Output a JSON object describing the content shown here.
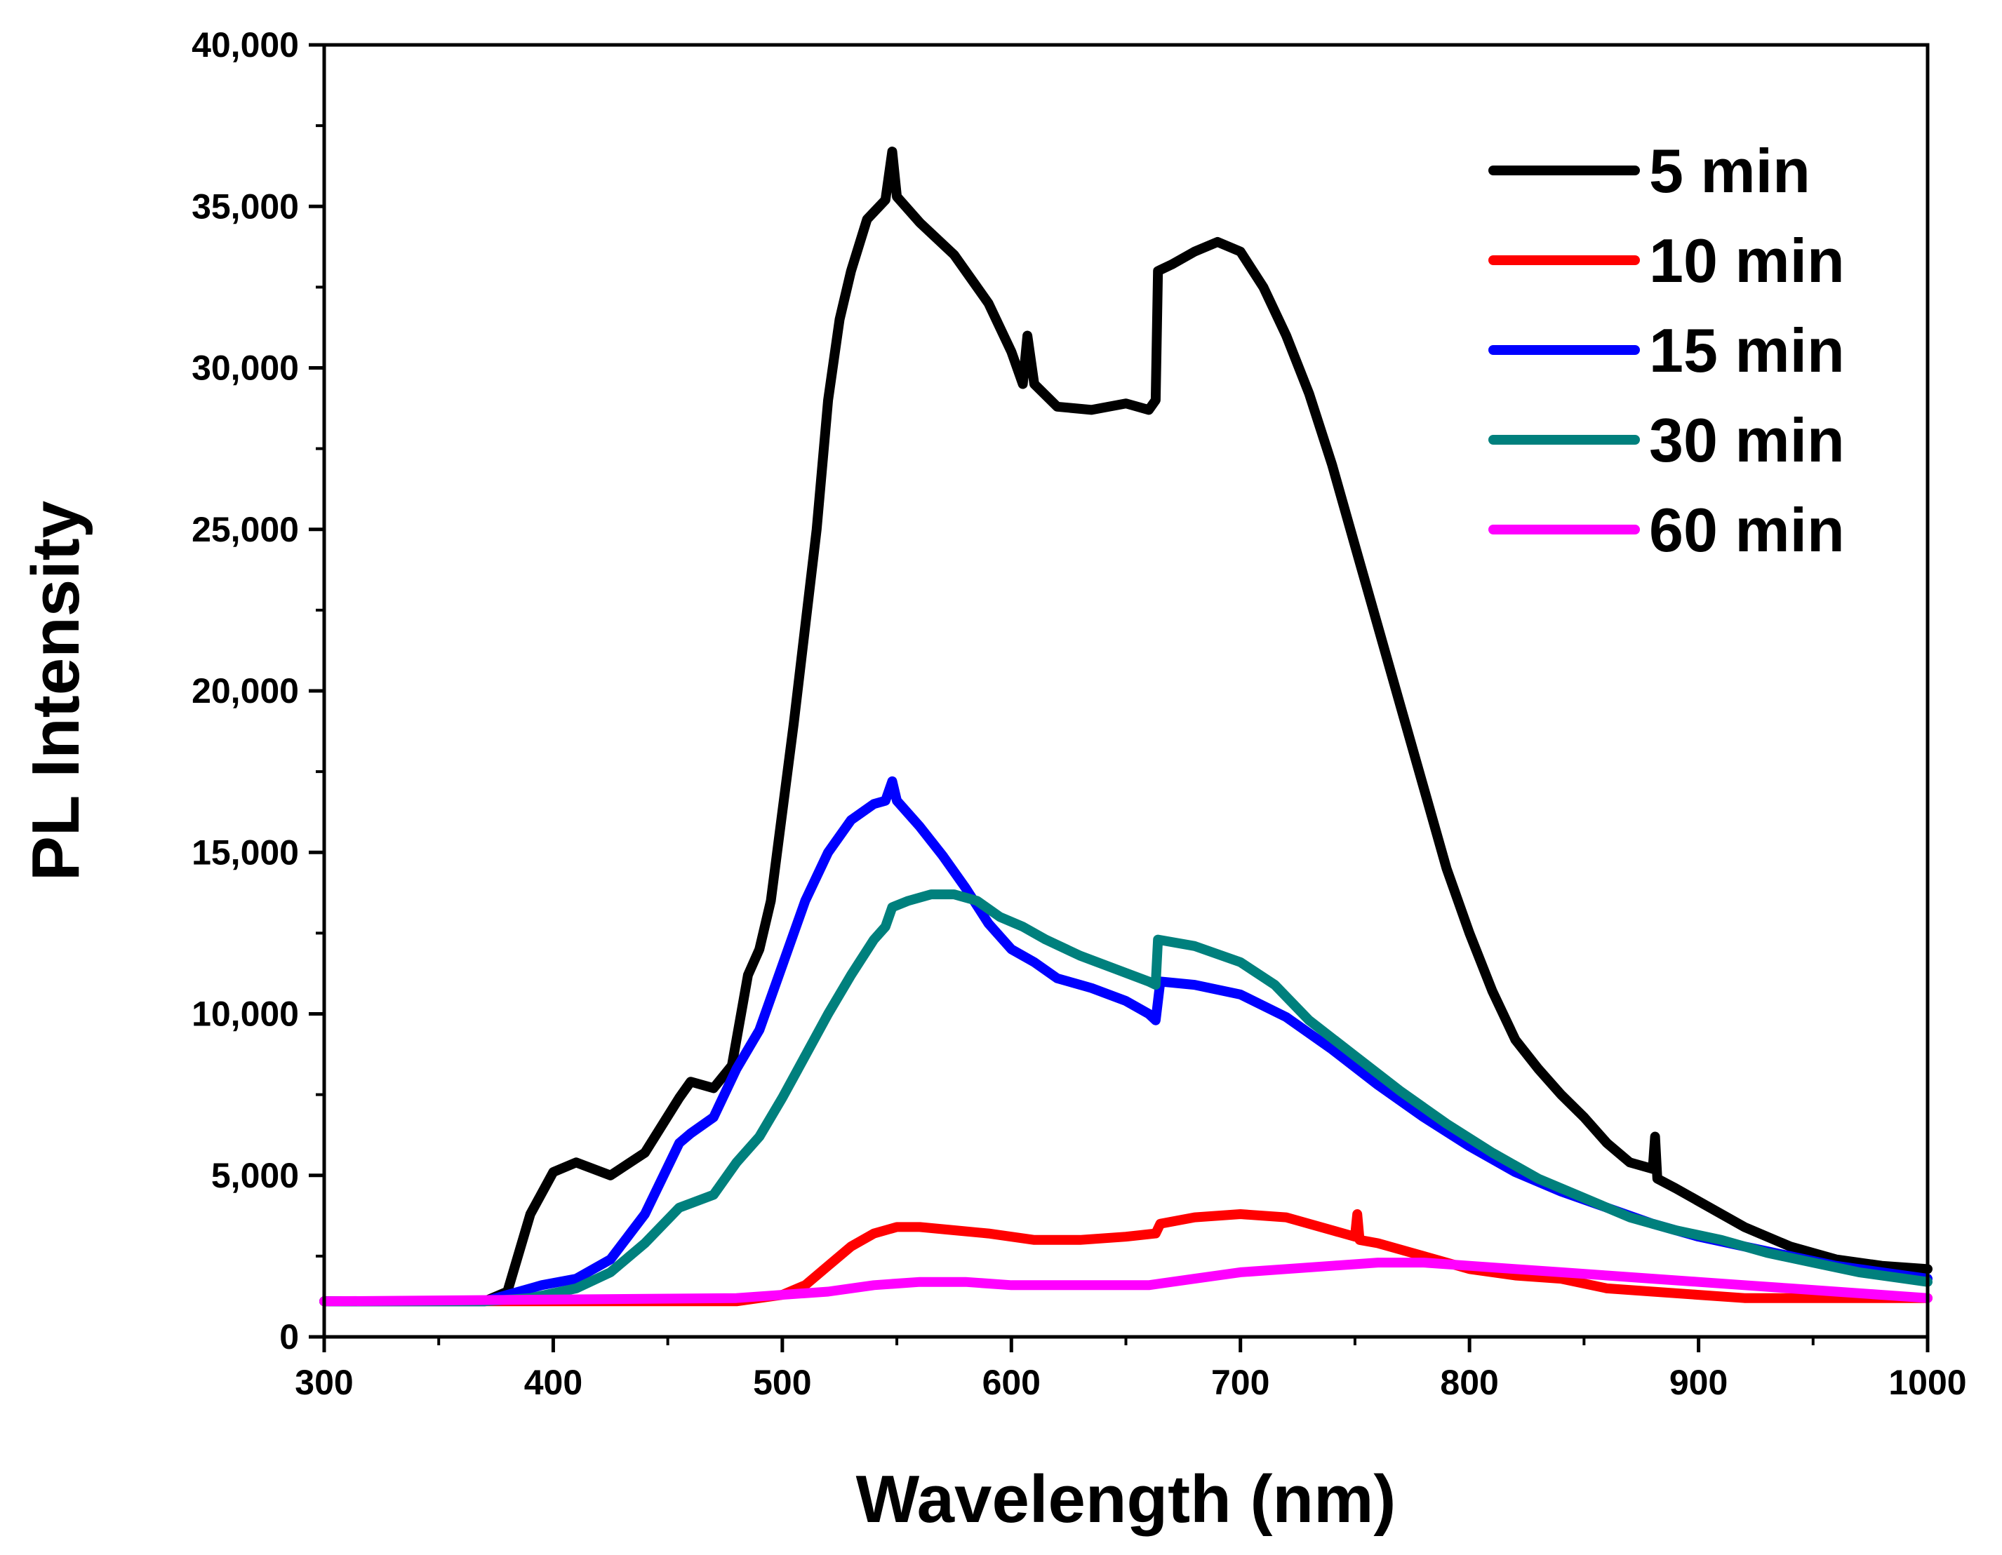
{
  "chart_data": {
    "type": "line",
    "title": "",
    "xlabel": "Wavelength (nm)",
    "ylabel": "PL Intensity",
    "xlim": [
      300,
      1000
    ],
    "ylim": [
      0,
      40000
    ],
    "x_ticks": [
      300,
      400,
      500,
      600,
      700,
      800,
      900,
      1000
    ],
    "x_tick_labels": [
      "300",
      "400",
      "500",
      "600",
      "700",
      "800",
      "900",
      "1000"
    ],
    "y_ticks": [
      0,
      5000,
      10000,
      15000,
      20000,
      25000,
      30000,
      35000,
      40000
    ],
    "y_tick_labels": [
      "0",
      "5,000",
      "10,000",
      "15,000",
      "20,000",
      "25,000",
      "30,000",
      "35,000",
      "40,000"
    ],
    "grid": false,
    "legend_position": "top-right",
    "series": [
      {
        "name": "5 min",
        "color": "#000000",
        "points": [
          [
            300,
            1100
          ],
          [
            370,
            1100
          ],
          [
            380,
            1400
          ],
          [
            390,
            3800
          ],
          [
            400,
            5100
          ],
          [
            410,
            5400
          ],
          [
            425,
            5000
          ],
          [
            440,
            5700
          ],
          [
            455,
            7400
          ],
          [
            460,
            7900
          ],
          [
            470,
            7700
          ],
          [
            478,
            8400
          ],
          [
            485,
            11200
          ],
          [
            490,
            12000
          ],
          [
            495,
            13500
          ],
          [
            505,
            19000
          ],
          [
            515,
            25000
          ],
          [
            520,
            29000
          ],
          [
            525,
            31500
          ],
          [
            530,
            33000
          ],
          [
            537,
            34600
          ],
          [
            545,
            35200
          ],
          [
            548,
            36700
          ],
          [
            550,
            35300
          ],
          [
            560,
            34500
          ],
          [
            575,
            33500
          ],
          [
            590,
            32000
          ],
          [
            600,
            30500
          ],
          [
            605,
            29500
          ],
          [
            607,
            31000
          ],
          [
            610,
            29500
          ],
          [
            620,
            28800
          ],
          [
            635,
            28700
          ],
          [
            650,
            28900
          ],
          [
            660,
            28700
          ],
          [
            663,
            29000
          ],
          [
            664,
            33000
          ],
          [
            670,
            33200
          ],
          [
            680,
            33600
          ],
          [
            690,
            33900
          ],
          [
            700,
            33600
          ],
          [
            710,
            32500
          ],
          [
            720,
            31000
          ],
          [
            730,
            29200
          ],
          [
            740,
            27000
          ],
          [
            750,
            24500
          ],
          [
            760,
            22000
          ],
          [
            770,
            19500
          ],
          [
            780,
            17000
          ],
          [
            790,
            14500
          ],
          [
            800,
            12500
          ],
          [
            810,
            10700
          ],
          [
            820,
            9200
          ],
          [
            830,
            8300
          ],
          [
            840,
            7500
          ],
          [
            850,
            6800
          ],
          [
            860,
            6000
          ],
          [
            870,
            5400
          ],
          [
            880,
            5200
          ],
          [
            881,
            6200
          ],
          [
            882,
            4900
          ],
          [
            890,
            4600
          ],
          [
            900,
            4200
          ],
          [
            920,
            3400
          ],
          [
            940,
            2800
          ],
          [
            960,
            2400
          ],
          [
            980,
            2200
          ],
          [
            1000,
            2100
          ]
        ]
      },
      {
        "name": "10 min",
        "color": "#ff0000",
        "points": [
          [
            300,
            1100
          ],
          [
            480,
            1100
          ],
          [
            500,
            1300
          ],
          [
            510,
            1600
          ],
          [
            520,
            2200
          ],
          [
            530,
            2800
          ],
          [
            540,
            3200
          ],
          [
            550,
            3400
          ],
          [
            560,
            3400
          ],
          [
            575,
            3300
          ],
          [
            590,
            3200
          ],
          [
            610,
            3000
          ],
          [
            630,
            3000
          ],
          [
            650,
            3100
          ],
          [
            663,
            3200
          ],
          [
            665,
            3500
          ],
          [
            680,
            3700
          ],
          [
            700,
            3800
          ],
          [
            720,
            3700
          ],
          [
            740,
            3300
          ],
          [
            750,
            3100
          ],
          [
            751,
            3800
          ],
          [
            752,
            3000
          ],
          [
            760,
            2900
          ],
          [
            780,
            2500
          ],
          [
            800,
            2100
          ],
          [
            820,
            1900
          ],
          [
            840,
            1800
          ],
          [
            860,
            1500
          ],
          [
            880,
            1400
          ],
          [
            900,
            1300
          ],
          [
            920,
            1200
          ],
          [
            940,
            1200
          ],
          [
            960,
            1200
          ],
          [
            1000,
            1200
          ]
        ]
      },
      {
        "name": "15 min",
        "color": "#0000ff",
        "points": [
          [
            300,
            1100
          ],
          [
            370,
            1100
          ],
          [
            380,
            1300
          ],
          [
            395,
            1600
          ],
          [
            410,
            1800
          ],
          [
            425,
            2400
          ],
          [
            440,
            3800
          ],
          [
            455,
            6000
          ],
          [
            460,
            6300
          ],
          [
            470,
            6800
          ],
          [
            480,
            8300
          ],
          [
            490,
            9500
          ],
          [
            500,
            11500
          ],
          [
            510,
            13500
          ],
          [
            520,
            15000
          ],
          [
            530,
            16000
          ],
          [
            540,
            16500
          ],
          [
            545,
            16600
          ],
          [
            548,
            17200
          ],
          [
            550,
            16600
          ],
          [
            560,
            15800
          ],
          [
            570,
            14900
          ],
          [
            580,
            13900
          ],
          [
            590,
            12800
          ],
          [
            600,
            12000
          ],
          [
            610,
            11600
          ],
          [
            620,
            11100
          ],
          [
            635,
            10800
          ],
          [
            650,
            10400
          ],
          [
            660,
            10000
          ],
          [
            663,
            9800
          ],
          [
            665,
            11000
          ],
          [
            680,
            10900
          ],
          [
            700,
            10600
          ],
          [
            720,
            9900
          ],
          [
            740,
            8900
          ],
          [
            760,
            7800
          ],
          [
            780,
            6800
          ],
          [
            800,
            5900
          ],
          [
            820,
            5100
          ],
          [
            840,
            4500
          ],
          [
            860,
            4000
          ],
          [
            880,
            3500
          ],
          [
            900,
            3100
          ],
          [
            920,
            2800
          ],
          [
            940,
            2500
          ],
          [
            960,
            2200
          ],
          [
            980,
            2000
          ],
          [
            1000,
            1800
          ]
        ]
      },
      {
        "name": "30 min",
        "color": "#00807d",
        "points": [
          [
            300,
            1100
          ],
          [
            370,
            1100
          ],
          [
            390,
            1200
          ],
          [
            410,
            1500
          ],
          [
            425,
            2000
          ],
          [
            440,
            2900
          ],
          [
            455,
            4000
          ],
          [
            470,
            4400
          ],
          [
            480,
            5400
          ],
          [
            490,
            6200
          ],
          [
            500,
            7400
          ],
          [
            510,
            8700
          ],
          [
            520,
            10000
          ],
          [
            530,
            11200
          ],
          [
            540,
            12300
          ],
          [
            545,
            12700
          ],
          [
            548,
            13300
          ],
          [
            555,
            13500
          ],
          [
            565,
            13700
          ],
          [
            575,
            13700
          ],
          [
            585,
            13500
          ],
          [
            595,
            13000
          ],
          [
            605,
            12700
          ],
          [
            615,
            12300
          ],
          [
            630,
            11800
          ],
          [
            645,
            11400
          ],
          [
            660,
            11000
          ],
          [
            663,
            10900
          ],
          [
            664,
            12300
          ],
          [
            680,
            12100
          ],
          [
            700,
            11600
          ],
          [
            715,
            10900
          ],
          [
            730,
            9800
          ],
          [
            750,
            8700
          ],
          [
            770,
            7600
          ],
          [
            790,
            6600
          ],
          [
            810,
            5700
          ],
          [
            830,
            4900
          ],
          [
            850,
            4300
          ],
          [
            870,
            3700
          ],
          [
            890,
            3300
          ],
          [
            910,
            3000
          ],
          [
            930,
            2600
          ],
          [
            950,
            2300
          ],
          [
            970,
            2000
          ],
          [
            990,
            1800
          ],
          [
            1000,
            1700
          ]
        ]
      },
      {
        "name": "60 min",
        "color": "#ff00ff",
        "points": [
          [
            300,
            1100
          ],
          [
            480,
            1200
          ],
          [
            520,
            1400
          ],
          [
            540,
            1600
          ],
          [
            560,
            1700
          ],
          [
            580,
            1700
          ],
          [
            600,
            1600
          ],
          [
            620,
            1600
          ],
          [
            640,
            1600
          ],
          [
            660,
            1600
          ],
          [
            680,
            1800
          ],
          [
            700,
            2000
          ],
          [
            720,
            2100
          ],
          [
            740,
            2200
          ],
          [
            760,
            2300
          ],
          [
            780,
            2300
          ],
          [
            800,
            2200
          ],
          [
            820,
            2100
          ],
          [
            840,
            2000
          ],
          [
            860,
            1900
          ],
          [
            880,
            1800
          ],
          [
            900,
            1700
          ],
          [
            920,
            1600
          ],
          [
            940,
            1500
          ],
          [
            960,
            1400
          ],
          [
            980,
            1300
          ],
          [
            1000,
            1200
          ]
        ]
      }
    ]
  }
}
